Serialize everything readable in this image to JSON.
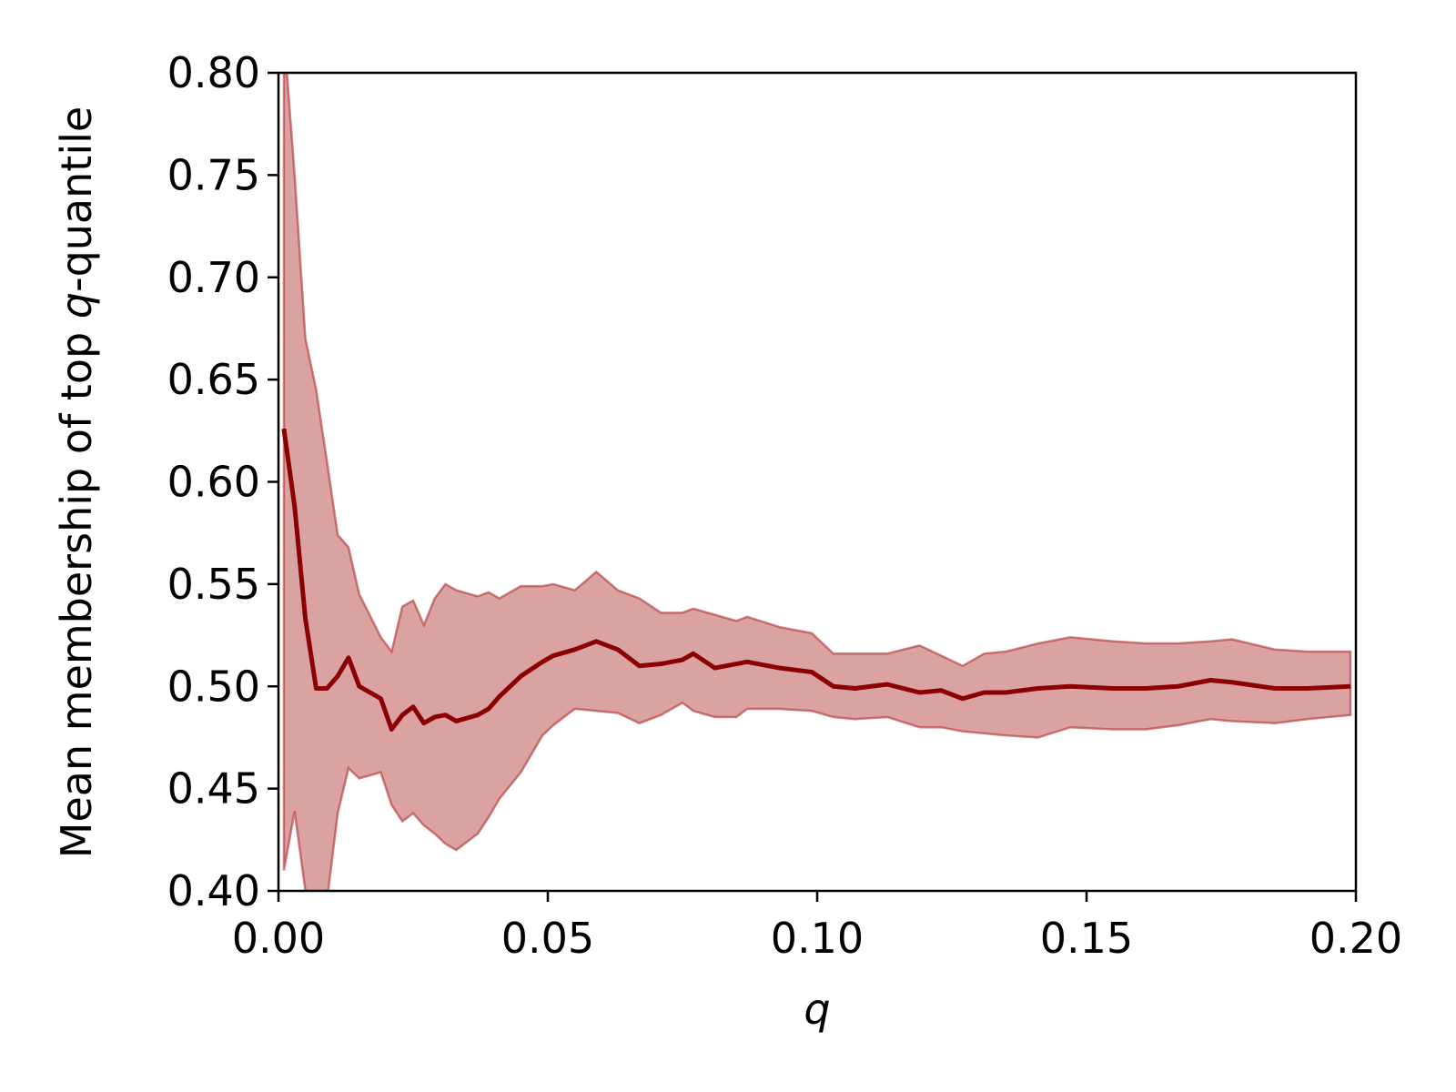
{
  "chart_data": {
    "type": "line",
    "xlabel": "q",
    "ylabel_parts": [
      "Mean membership of top ",
      "q",
      "-quantile"
    ],
    "x": [
      0.001,
      0.003,
      0.005,
      0.007,
      0.009,
      0.011,
      0.013,
      0.015,
      0.019,
      0.021,
      0.023,
      0.025,
      0.027,
      0.029,
      0.031,
      0.033,
      0.037,
      0.039,
      0.041,
      0.045,
      0.049,
      0.051,
      0.055,
      0.059,
      0.063,
      0.067,
      0.071,
      0.075,
      0.077,
      0.081,
      0.085,
      0.087,
      0.093,
      0.099,
      0.103,
      0.107,
      0.113,
      0.119,
      0.123,
      0.127,
      0.131,
      0.135,
      0.141,
      0.147,
      0.155,
      0.161,
      0.167,
      0.173,
      0.177,
      0.185,
      0.191,
      0.199
    ],
    "series": [
      {
        "color": "#8b0000",
        "band_color": "#b03030",
        "values": [
          0.626,
          0.588,
          0.533,
          0.499,
          0.499,
          0.505,
          0.514,
          0.5,
          0.494,
          0.479,
          0.486,
          0.49,
          0.482,
          0.485,
          0.486,
          0.483,
          0.486,
          0.489,
          0.495,
          0.505,
          0.512,
          0.515,
          0.518,
          0.522,
          0.518,
          0.51,
          0.511,
          0.513,
          0.516,
          0.509,
          0.511,
          0.512,
          0.509,
          0.507,
          0.5,
          0.499,
          0.501,
          0.497,
          0.498,
          0.494,
          0.497,
          0.497,
          0.499,
          0.5,
          0.499,
          0.499,
          0.5,
          0.503,
          0.502,
          0.499,
          0.499,
          0.5
        ],
        "upper": [
          0.82,
          0.75,
          0.67,
          0.645,
          0.61,
          0.574,
          0.568,
          0.545,
          0.524,
          0.517,
          0.539,
          0.542,
          0.53,
          0.543,
          0.55,
          0.547,
          0.544,
          0.546,
          0.543,
          0.549,
          0.549,
          0.55,
          0.547,
          0.556,
          0.547,
          0.543,
          0.536,
          0.536,
          0.538,
          0.535,
          0.532,
          0.534,
          0.529,
          0.526,
          0.516,
          0.516,
          0.516,
          0.52,
          0.515,
          0.51,
          0.516,
          0.517,
          0.521,
          0.524,
          0.522,
          0.521,
          0.521,
          0.522,
          0.523,
          0.518,
          0.517,
          0.517
        ],
        "lower": [
          0.41,
          0.439,
          0.4,
          0.385,
          0.395,
          0.438,
          0.46,
          0.455,
          0.458,
          0.442,
          0.434,
          0.438,
          0.432,
          0.428,
          0.423,
          0.42,
          0.428,
          0.436,
          0.445,
          0.458,
          0.476,
          0.481,
          0.489,
          0.488,
          0.487,
          0.482,
          0.486,
          0.492,
          0.488,
          0.485,
          0.485,
          0.489,
          0.489,
          0.488,
          0.485,
          0.484,
          0.485,
          0.48,
          0.48,
          0.478,
          0.477,
          0.476,
          0.475,
          0.48,
          0.479,
          0.479,
          0.481,
          0.484,
          0.483,
          0.482,
          0.484,
          0.486
        ]
      }
    ],
    "xlim": [
      0,
      0.2
    ],
    "xticks": [
      {
        "value": 0,
        "label": "0.00"
      },
      {
        "value": 0.05,
        "label": "0.05"
      },
      {
        "value": 0.1,
        "label": "0.10"
      },
      {
        "value": 0.15,
        "label": "0.15"
      },
      {
        "value": 0.2,
        "label": "0.20"
      }
    ],
    "ylim": [
      0.4,
      0.8
    ],
    "yticks": [
      {
        "value": 0.4,
        "label": "0.40"
      },
      {
        "value": 0.45,
        "label": "0.45"
      },
      {
        "value": 0.5,
        "label": "0.50"
      },
      {
        "value": 0.55,
        "label": "0.55"
      },
      {
        "value": 0.6,
        "label": "0.60"
      },
      {
        "value": 0.65,
        "label": "0.65"
      },
      {
        "value": 0.7,
        "label": "0.70"
      },
      {
        "value": 0.75,
        "label": "0.75"
      },
      {
        "value": 0.8,
        "label": "0.80"
      }
    ]
  }
}
